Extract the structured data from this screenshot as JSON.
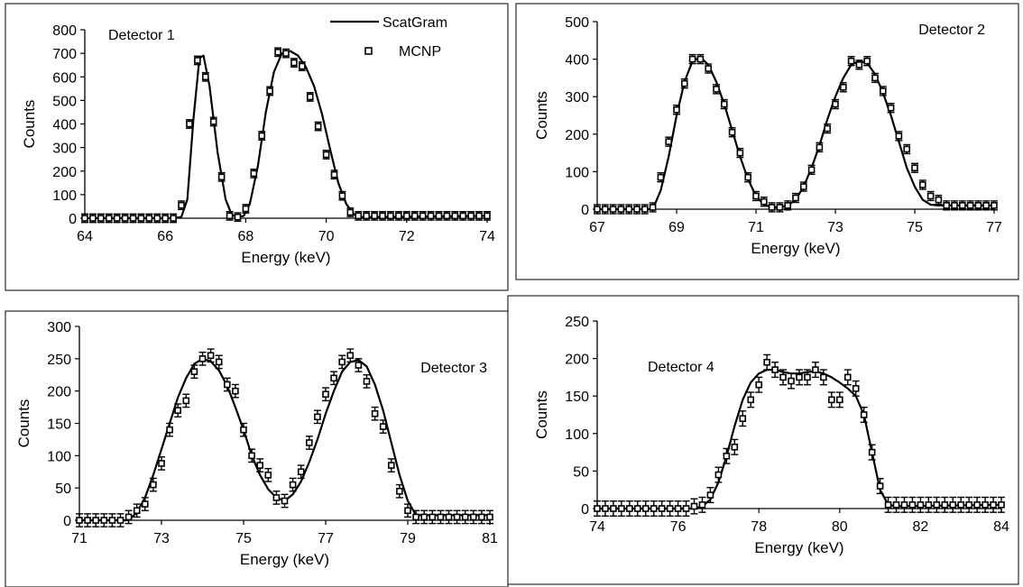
{
  "legend": {
    "line_label": "ScatGram",
    "marker_label": "MCNP"
  },
  "chart_data": [
    {
      "type": "line",
      "title": "Detector 1",
      "xlabel": "Energy (keV)",
      "ylabel": "Counts",
      "xlim": [
        64,
        74
      ],
      "ylim": [
        0,
        800
      ],
      "xticks": [
        64,
        66,
        68,
        70,
        72,
        74
      ],
      "yticks": [
        0,
        100,
        200,
        300,
        400,
        500,
        600,
        700,
        800
      ],
      "series": [
        {
          "name": "ScatGram",
          "style": "line",
          "x": [
            64,
            66.2,
            66.4,
            66.55,
            66.7,
            66.85,
            66.95,
            67.1,
            67.3,
            67.5,
            67.65,
            67.8,
            67.95,
            68.1,
            68.3,
            68.5,
            68.7,
            68.9,
            69.1,
            69.3,
            69.5,
            69.7,
            69.9,
            70.1,
            70.3,
            70.5,
            70.7,
            70.9,
            71.1,
            74
          ],
          "y": [
            0,
            0,
            5,
            80,
            420,
            680,
            690,
            560,
            280,
            80,
            15,
            5,
            10,
            60,
            220,
            450,
            620,
            700,
            710,
            690,
            640,
            560,
            440,
            290,
            150,
            60,
            15,
            5,
            5,
            10
          ]
        },
        {
          "name": "MCNP",
          "style": "markers",
          "error": 18,
          "x": [
            64,
            64.2,
            64.4,
            64.6,
            64.8,
            65,
            65.2,
            65.4,
            65.6,
            65.8,
            66,
            66.2,
            66.4,
            66.6,
            66.8,
            67,
            67.2,
            67.4,
            67.6,
            67.8,
            68,
            68.2,
            68.4,
            68.6,
            68.8,
            69,
            69.2,
            69.4,
            69.6,
            69.8,
            70,
            70.2,
            70.4,
            70.6,
            70.8,
            71,
            71.2,
            71.4,
            71.6,
            71.8,
            72,
            72.2,
            72.4,
            72.6,
            72.8,
            73,
            73.2,
            73.4,
            73.6,
            73.8,
            74
          ],
          "y": [
            0,
            0,
            0,
            0,
            0,
            0,
            0,
            0,
            0,
            0,
            0,
            0,
            55,
            400,
            670,
            600,
            410,
            175,
            10,
            5,
            40,
            190,
            350,
            540,
            705,
            700,
            660,
            645,
            515,
            390,
            270,
            185,
            95,
            25,
            10,
            10,
            10,
            10,
            10,
            10,
            10,
            10,
            10,
            10,
            10,
            10,
            10,
            10,
            10,
            10,
            10
          ]
        }
      ]
    },
    {
      "type": "line",
      "title": "Detector 2",
      "xlabel": "Energy (keV)",
      "ylabel": "Counts",
      "xlim": [
        67,
        77
      ],
      "ylim": [
        0,
        500
      ],
      "xticks": [
        67,
        69,
        71,
        73,
        75,
        77
      ],
      "yticks": [
        0,
        100,
        200,
        300,
        400,
        500
      ],
      "series": [
        {
          "name": "ScatGram",
          "style": "line",
          "x": [
            67,
            68.4,
            68.6,
            68.8,
            69,
            69.2,
            69.4,
            69.6,
            69.8,
            70,
            70.2,
            70.4,
            70.6,
            70.8,
            71,
            71.2,
            71.4,
            71.6,
            71.8,
            72,
            72.2,
            72.4,
            72.6,
            72.8,
            73,
            73.2,
            73.4,
            73.6,
            73.8,
            74,
            74.2,
            74.4,
            74.6,
            74.8,
            75,
            75.2,
            75.4,
            75.6,
            77
          ],
          "y": [
            0,
            0,
            50,
            140,
            250,
            340,
            395,
            405,
            385,
            340,
            280,
            210,
            140,
            80,
            35,
            12,
            5,
            5,
            10,
            25,
            60,
            110,
            170,
            240,
            300,
            350,
            385,
            395,
            390,
            360,
            310,
            250,
            180,
            110,
            60,
            25,
            12,
            10,
            10
          ]
        },
        {
          "name": "MCNP",
          "style": "markers",
          "error": 12,
          "x": [
            67,
            67.2,
            67.4,
            67.6,
            67.8,
            68,
            68.2,
            68.4,
            68.6,
            68.8,
            69,
            69.2,
            69.4,
            69.6,
            69.8,
            70,
            70.2,
            70.4,
            70.6,
            70.8,
            71,
            71.2,
            71.4,
            71.6,
            71.8,
            72,
            72.2,
            72.4,
            72.6,
            72.8,
            73,
            73.2,
            73.4,
            73.6,
            73.8,
            74,
            74.2,
            74.4,
            74.6,
            74.8,
            75,
            75.2,
            75.4,
            75.6,
            75.8,
            76,
            76.2,
            76.4,
            76.6,
            76.8,
            77
          ],
          "y": [
            0,
            0,
            0,
            0,
            0,
            0,
            0,
            5,
            85,
            180,
            265,
            335,
            400,
            400,
            375,
            320,
            280,
            205,
            150,
            85,
            35,
            20,
            5,
            5,
            10,
            30,
            60,
            105,
            165,
            215,
            280,
            325,
            395,
            385,
            395,
            350,
            315,
            270,
            195,
            160,
            110,
            65,
            35,
            25,
            10,
            10,
            10,
            10,
            10,
            10,
            10
          ]
        }
      ]
    },
    {
      "type": "line",
      "title": "Detector 3",
      "xlabel": "Energy (keV)",
      "ylabel": "Counts",
      "xlim": [
        71,
        81
      ],
      "ylim": [
        0,
        300
      ],
      "xticks": [
        71,
        73,
        75,
        77,
        79,
        81
      ],
      "yticks": [
        0,
        50,
        100,
        150,
        200,
        250,
        300
      ],
      "series": [
        {
          "name": "ScatGram",
          "style": "line",
          "x": [
            71,
            72.2,
            72.4,
            72.6,
            72.8,
            73,
            73.2,
            73.4,
            73.6,
            73.8,
            74,
            74.2,
            74.4,
            74.6,
            74.8,
            75,
            75.2,
            75.4,
            75.6,
            75.8,
            76,
            76.2,
            76.4,
            76.6,
            76.8,
            77,
            77.2,
            77.4,
            77.6,
            77.8,
            78,
            78.2,
            78.4,
            78.6,
            78.8,
            79,
            79.2,
            81
          ],
          "y": [
            0,
            0,
            12,
            35,
            70,
            110,
            150,
            190,
            220,
            242,
            250,
            246,
            232,
            208,
            175,
            140,
            100,
            70,
            48,
            35,
            30,
            40,
            60,
            90,
            125,
            165,
            200,
            230,
            245,
            248,
            238,
            210,
            170,
            120,
            70,
            30,
            8,
            8
          ]
        },
        {
          "name": "MCNP",
          "style": "markers",
          "error": 10,
          "x": [
            71,
            71.2,
            71.4,
            71.6,
            71.8,
            72,
            72.2,
            72.4,
            72.6,
            72.8,
            73,
            73.2,
            73.4,
            73.6,
            73.8,
            74,
            74.2,
            74.4,
            74.6,
            74.8,
            75,
            75.2,
            75.4,
            75.6,
            75.8,
            76,
            76.2,
            76.4,
            76.6,
            76.8,
            77,
            77.2,
            77.4,
            77.6,
            77.8,
            78,
            78.2,
            78.4,
            78.6,
            78.8,
            79,
            79.2,
            79.4,
            79.6,
            79.8,
            80,
            80.2,
            80.4,
            80.6,
            80.8,
            81
          ],
          "y": [
            0,
            0,
            0,
            0,
            0,
            0,
            5,
            15,
            25,
            55,
            88,
            140,
            170,
            185,
            230,
            250,
            255,
            245,
            210,
            200,
            140,
            100,
            85,
            70,
            35,
            30,
            55,
            75,
            120,
            160,
            195,
            220,
            245,
            255,
            240,
            215,
            165,
            145,
            85,
            45,
            15,
            5,
            5,
            5,
            5,
            5,
            5,
            5,
            5,
            5,
            5
          ]
        }
      ]
    },
    {
      "type": "line",
      "title": "Detector 4",
      "xlabel": "Energy (keV)",
      "ylabel": "Counts",
      "xlim": [
        74,
        84
      ],
      "ylim": [
        0,
        250
      ],
      "xticks": [
        74,
        76,
        78,
        80,
        82,
        84
      ],
      "yticks": [
        0,
        50,
        100,
        150,
        200,
        250
      ],
      "series": [
        {
          "name": "ScatGram",
          "style": "line",
          "x": [
            74,
            76.4,
            76.6,
            76.8,
            77,
            77.2,
            77.4,
            77.6,
            77.8,
            78,
            78.2,
            78.4,
            78.6,
            78.8,
            79,
            79.2,
            79.4,
            79.6,
            79.8,
            80,
            80.2,
            80.4,
            80.6,
            80.8,
            81,
            81.2,
            81.4,
            84
          ],
          "y": [
            0,
            0,
            3,
            12,
            35,
            70,
            110,
            145,
            168,
            180,
            185,
            185,
            182,
            180,
            180,
            182,
            183,
            180,
            175,
            168,
            160,
            150,
            125,
            75,
            25,
            5,
            3,
            5
          ]
        },
        {
          "name": "MCNP",
          "style": "markers",
          "error": 10,
          "x": [
            74,
            74.2,
            74.4,
            74.6,
            74.8,
            75,
            75.2,
            75.4,
            75.6,
            75.8,
            76,
            76.2,
            76.4,
            76.6,
            76.8,
            77,
            77.2,
            77.4,
            77.6,
            77.8,
            78,
            78.2,
            78.4,
            78.6,
            78.8,
            79,
            79.2,
            79.4,
            79.6,
            79.8,
            80,
            80.2,
            80.4,
            80.6,
            80.8,
            81,
            81.2,
            81.4,
            81.6,
            81.8,
            82,
            82.2,
            82.4,
            82.6,
            82.8,
            83,
            83.2,
            83.4,
            83.6,
            83.8,
            84
          ],
          "y": [
            0,
            0,
            0,
            0,
            0,
            0,
            0,
            0,
            0,
            0,
            0,
            0,
            3,
            5,
            18,
            45,
            70,
            82,
            120,
            145,
            165,
            195,
            185,
            175,
            170,
            175,
            175,
            185,
            175,
            145,
            145,
            175,
            160,
            125,
            75,
            30,
            5,
            5,
            5,
            5,
            5,
            5,
            5,
            5,
            5,
            5,
            5,
            5,
            5,
            5,
            5
          ]
        }
      ]
    }
  ]
}
